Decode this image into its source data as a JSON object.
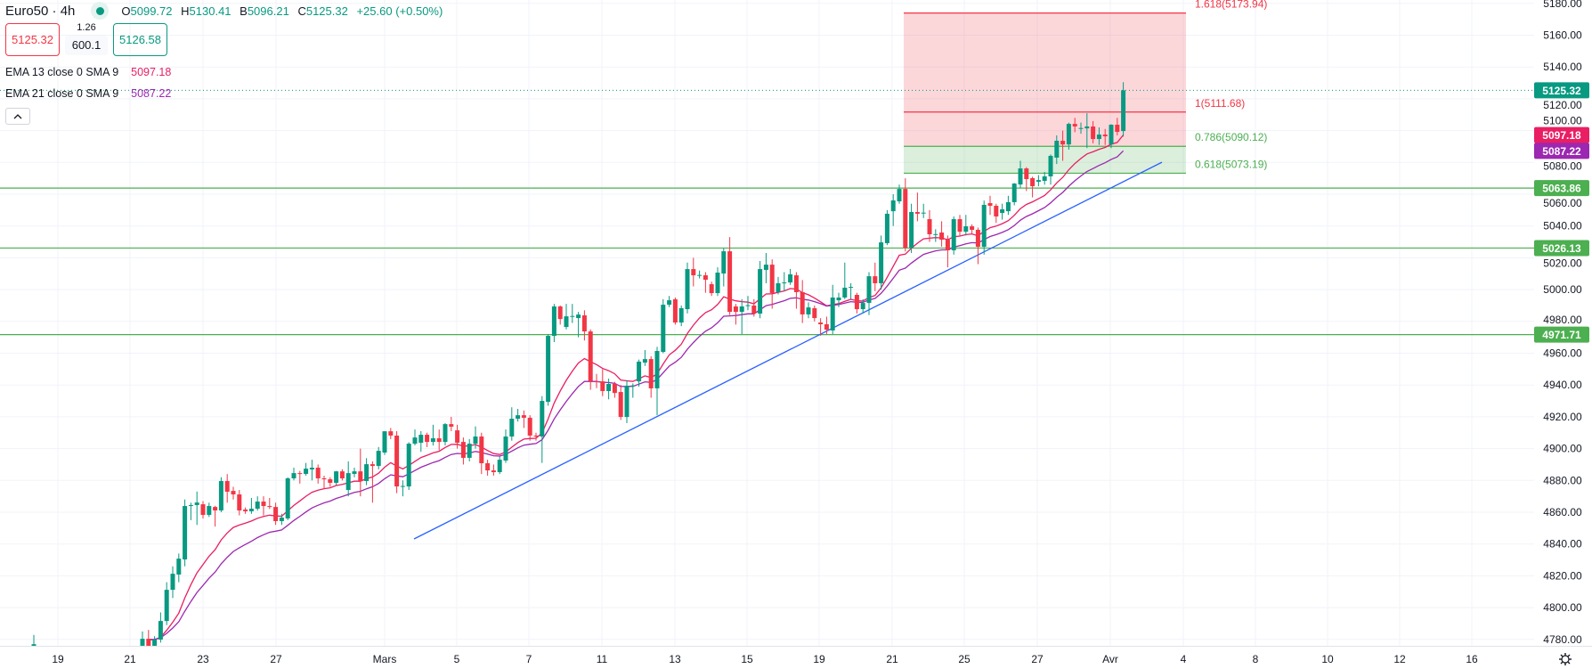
{
  "header": {
    "symbol": "Euro50 · 4h",
    "ohlc": [
      {
        "key": "O",
        "value": "5099.72"
      },
      {
        "key": "H",
        "value": "5130.41"
      },
      {
        "key": "B",
        "value": "5096.21"
      },
      {
        "key": "C",
        "value": "5125.32"
      }
    ],
    "change": "+25.60 (+0.50%)",
    "status_dot_color": "#089981"
  },
  "trade": {
    "sell_price": "5125.32",
    "spread": "1.26",
    "quantity": "600.1",
    "buy_price": "5126.58"
  },
  "indicators": [
    {
      "name": "EMA 13 close 0 SMA 9",
      "value": "5097.18",
      "color": "#e91e63",
      "length": 13
    },
    {
      "name": "EMA 21 close 0 SMA 9",
      "value": "5087.22",
      "color": "#9c27b0",
      "length": 21
    }
  ],
  "colors": {
    "up": "#089981",
    "down": "#f23645",
    "grid": "#f0f3fa",
    "level": "#4caf50",
    "trendline": "#2962ff",
    "fib_red": "#f23645",
    "fib_green": "#4caf50"
  },
  "icons": {
    "collapse": "chevron-up-icon",
    "settings": "gear-icon"
  },
  "chart_data": {
    "type": "candlestick",
    "ylim": [
      4776,
      5182
    ],
    "y_ticks": [
      5180,
      5160,
      5140,
      5120,
      5100,
      5080,
      5060,
      5040,
      5020,
      5000,
      4980,
      4960,
      4940,
      4920,
      4900,
      4880,
      4860,
      4840,
      4820,
      4800,
      4780
    ],
    "x_ticks": [
      "19",
      "21",
      "23",
      "27",
      "Mars",
      "5",
      "7",
      "11",
      "13",
      "15",
      "19",
      "21",
      "25",
      "27",
      "Avr",
      "4",
      "8",
      "10",
      "12",
      "16"
    ],
    "grid": true,
    "isolated_candle": [
      4776.0,
      4782.8,
      4776.0,
      4777.0
    ],
    "candles": [
      [
        4776.0,
        4785,
        4774,
        4780.4
      ],
      [
        4780.4,
        4786,
        4774,
        4776.0
      ],
      [
        4776.0,
        4782,
        4775,
        4779.9
      ],
      [
        4779.9,
        4797,
        4778,
        4791.6
      ],
      [
        4791.6,
        4816,
        4789,
        4811.2
      ],
      [
        4811.2,
        4826,
        4806,
        4821.3
      ],
      [
        4820.8,
        4834,
        4816,
        4830.8
      ],
      [
        4830.3,
        4868,
        4826,
        4863.9
      ],
      [
        4863.9,
        4866,
        4855,
        4864.5
      ],
      [
        4864.5,
        4873,
        4852,
        4866.1
      ],
      [
        4865.0,
        4867,
        4856,
        4858.3
      ],
      [
        4858.3,
        4866,
        4857,
        4863.9
      ],
      [
        4863.3,
        4864,
        4851,
        4861.1
      ],
      [
        4861.1,
        4882,
        4860,
        4879.6
      ],
      [
        4879.6,
        4884,
        4866,
        4872.9
      ],
      [
        4873.4,
        4876,
        4868,
        4871.2
      ],
      [
        4871.2,
        4874,
        4858,
        4861.1
      ],
      [
        4861.7,
        4863,
        4859,
        4860.6
      ],
      [
        4860.6,
        4869,
        4859,
        4862.2
      ],
      [
        4862.2,
        4870,
        4861,
        4866.7
      ],
      [
        4866.7,
        4870,
        4858,
        4863.9
      ],
      [
        4863.9,
        4869,
        4862,
        4863.3
      ],
      [
        4863.3,
        4866,
        4852,
        4854.4
      ],
      [
        4854.4,
        4859,
        4852,
        4856.6
      ],
      [
        4856.1,
        4882,
        4855,
        4881.3
      ],
      [
        4881.3,
        4888,
        4880,
        4884.6
      ],
      [
        4884.6,
        4886,
        4878,
        4884.1
      ],
      [
        4884.1,
        4891,
        4883,
        4887.4
      ],
      [
        4886.9,
        4893,
        4880,
        4888.0
      ],
      [
        4888.0,
        4890,
        4878,
        4881.3
      ],
      [
        4881.3,
        4883,
        4875,
        4880.7
      ],
      [
        4880.7,
        4882,
        4876,
        4878.5
      ],
      [
        4878.5,
        4886,
        4877,
        4885.7
      ],
      [
        4885.7,
        4887,
        4880,
        4881.3
      ],
      [
        4874.0,
        4892,
        4870,
        4884.6
      ],
      [
        4884.1,
        4888,
        4882,
        4885.7
      ],
      [
        4885.7,
        4900,
        4870,
        4879.6
      ],
      [
        4879.6,
        4894,
        4877,
        4890.2
      ],
      [
        4890.2,
        4892,
        4866,
        4889.1
      ],
      [
        4889.1,
        4901,
        4887,
        4898.6
      ],
      [
        4897.5,
        4911,
        4896,
        4910.9
      ],
      [
        4910.9,
        4913,
        4906,
        4908.2
      ],
      [
        4908.2,
        4911,
        4872,
        4876.2
      ],
      [
        4876.2,
        4880,
        4870,
        4876.5
      ],
      [
        4876.2,
        4904,
        4874,
        4903.1
      ],
      [
        4903.1,
        4912,
        4902,
        4907.0
      ],
      [
        4903.7,
        4911,
        4898,
        4908.7
      ],
      [
        4908.7,
        4910,
        4901,
        4904.2
      ],
      [
        4904.2,
        4915,
        4902,
        4906.5
      ],
      [
        4906.5,
        4912,
        4899,
        4904.2
      ],
      [
        4904.2,
        4916,
        4902,
        4915.4
      ],
      [
        4915.4,
        4920,
        4911,
        4913.8
      ],
      [
        4911.5,
        4915,
        4900,
        4903.7
      ],
      [
        4904.2,
        4907,
        4890,
        4894.2
      ],
      [
        4894.2,
        4906,
        4892,
        4903.1
      ],
      [
        4903.1,
        4914,
        4900,
        4907.6
      ],
      [
        4907.6,
        4910,
        4884,
        4890.8
      ],
      [
        4890.8,
        4893,
        4883,
        4886.3
      ],
      [
        4886.3,
        4890,
        4883,
        4885.2
      ],
      [
        4885.2,
        4895,
        4884,
        4893.0
      ],
      [
        4892.5,
        4912,
        4891,
        4907.6
      ],
      [
        4907.6,
        4926,
        4905,
        4918.8
      ],
      [
        4918.8,
        4925,
        4917,
        4921.0
      ],
      [
        4921.0,
        4924,
        4913,
        4919.4
      ],
      [
        4919.4,
        4921,
        4905,
        4908.2
      ],
      [
        4908.2,
        4910,
        4905,
        4907.6
      ],
      [
        4907.6,
        4933,
        4891,
        4930.0
      ],
      [
        4929.4,
        4972,
        4927,
        4970.9
      ],
      [
        4970.9,
        4991,
        4967,
        4989.4
      ],
      [
        4989.4,
        4990,
        4978,
        4981.5
      ],
      [
        4976.5,
        4991,
        4975,
        4983.2
      ],
      [
        4983.2,
        4991,
        4979,
        4983.4
      ],
      [
        4982.1,
        4986,
        4970,
        4984.3
      ],
      [
        4983.8,
        4987,
        4968,
        4973.7
      ],
      [
        4973.7,
        4975,
        4937,
        4942.3
      ],
      [
        4942.3,
        4947,
        4938,
        4942.0
      ],
      [
        4942.3,
        4950,
        4933,
        4936.2
      ],
      [
        4936.2,
        4944,
        4931,
        4940.7
      ],
      [
        4940.7,
        4942,
        4932,
        4935.0
      ],
      [
        4935.6,
        4940,
        4918,
        4919.9
      ],
      [
        4919.9,
        4943,
        4916,
        4939.5
      ],
      [
        4939.5,
        4941,
        4932,
        4939.7
      ],
      [
        4942.3,
        4956,
        4939,
        4954.7
      ],
      [
        4954.1,
        4962,
        4952,
        4956.3
      ],
      [
        4956.3,
        4958,
        4932,
        4937.9
      ],
      [
        4937.9,
        4964,
        4921,
        4961.4
      ],
      [
        4960.8,
        4994,
        4960,
        4990.5
      ],
      [
        4990.5,
        4996,
        4989,
        4993.3
      ],
      [
        4993.9,
        4995,
        4978,
        4979.3
      ],
      [
        4979.3,
        4990,
        4977,
        4988.3
      ],
      [
        4987.7,
        5017,
        4985,
        5012.9
      ],
      [
        5012.9,
        5020,
        5002,
        5009.0
      ],
      [
        5009.0,
        5012,
        5007,
        5009.2
      ],
      [
        5009.0,
        5011,
        4998,
        5006.2
      ],
      [
        5003.4,
        5005,
        4996,
        4997.8
      ],
      [
        4997.8,
        5014,
        4996,
        5010.7
      ],
      [
        5010.1,
        5026,
        5002,
        5024.1
      ],
      [
        5024.1,
        5033,
        4984,
        4986.0
      ],
      [
        4989.4,
        4991,
        4978,
        4986.0
      ],
      [
        4986.0,
        4994,
        4972,
        4989.4
      ],
      [
        4990.0,
        4996,
        4987,
        4990.2
      ],
      [
        4990.0,
        4994,
        4983,
        4984.9
      ],
      [
        4984.9,
        5018,
        4982,
        5012.9
      ],
      [
        5012.4,
        5023,
        5004,
        5015.7
      ],
      [
        5015.7,
        5019,
        4988,
        4997.8
      ],
      [
        4998.4,
        5008,
        4997,
        5004.0
      ],
      [
        5004.0,
        5011,
        4999,
        5004.5
      ],
      [
        5004.5,
        5013,
        5003,
        5009.6
      ],
      [
        5009.0,
        5011,
        4988,
        4998.4
      ],
      [
        4998.4,
        5006,
        4979,
        4984.4
      ],
      [
        4984.4,
        4992,
        4982,
        4988.8
      ],
      [
        4988.3,
        4990,
        4980,
        4982.1
      ],
      [
        4979.3,
        4982,
        4971,
        4978.2
      ],
      [
        4978.2,
        4983,
        4972,
        4974.8
      ],
      [
        4974.3,
        5003,
        4972,
        4995.0
      ],
      [
        4993.3,
        4998,
        4989,
        4995.0
      ],
      [
        4995.0,
        5017,
        4994,
        5001.2
      ],
      [
        5001.2,
        5004,
        4994,
        5001.7
      ],
      [
        4996.7,
        4998,
        4985,
        4987.7
      ],
      [
        4987.7,
        4994,
        4985,
        4991.6
      ],
      [
        4991.6,
        5011,
        4984,
        5008.4
      ],
      [
        5008.4,
        5017,
        4999,
        5004.0
      ],
      [
        5004.0,
        5034,
        5000,
        5029.7
      ],
      [
        5029.2,
        5050,
        5028,
        5047.7
      ],
      [
        5049.3,
        5060,
        5040,
        5056.1
      ],
      [
        5055.5,
        5066,
        5054,
        5063.3
      ],
      [
        5063.3,
        5070,
        5024,
        5026.4
      ],
      [
        5026.4,
        5054,
        5023,
        5048.8
      ],
      [
        5048.8,
        5061,
        5043,
        5047.7
      ],
      [
        5048.2,
        5054,
        5045,
        5048.4
      ],
      [
        5044.3,
        5050,
        5030,
        5034.8
      ],
      [
        5034.8,
        5038,
        5030,
        5034.9
      ],
      [
        5035.9,
        5043,
        5027,
        5031.4
      ],
      [
        5031.4,
        5034,
        5014,
        5024.7
      ],
      [
        5024.7,
        5046,
        5022,
        5044.3
      ],
      [
        5044.3,
        5047,
        5034,
        5036.4
      ],
      [
        5036.4,
        5047,
        5034,
        5039.8
      ],
      [
        5039.8,
        5041,
        5035,
        5037.6
      ],
      [
        5037.6,
        5039,
        5016,
        5026.9
      ],
      [
        5026.9,
        5056,
        5022,
        5053.3
      ],
      [
        5054.4,
        5059,
        5047,
        5052.7
      ],
      [
        5052.7,
        5054,
        5042,
        5046.0
      ],
      [
        5048.2,
        5054,
        5044,
        5050.5
      ],
      [
        5049.3,
        5059,
        5047,
        5055.0
      ],
      [
        5055.0,
        5067,
        5053,
        5066.7
      ],
      [
        5066.1,
        5081,
        5064,
        5076.2
      ],
      [
        5076.2,
        5077,
        5062,
        5069.5
      ],
      [
        5070.1,
        5071,
        5058,
        5065.0
      ],
      [
        5067.8,
        5072,
        5065,
        5068.9
      ],
      [
        5068.4,
        5074,
        5066,
        5071.2
      ],
      [
        5071.2,
        5085,
        5066,
        5084.1
      ],
      [
        5083.0,
        5097,
        5079,
        5093.6
      ],
      [
        5093.6,
        5100,
        5081,
        5091.3
      ],
      [
        5091.3,
        5105,
        5088,
        5104.2
      ],
      [
        5104.2,
        5108,
        5099,
        5102.6
      ],
      [
        5101.4,
        5105,
        5098,
        5101.6
      ],
      [
        5101.4,
        5111,
        5089,
        5102.6
      ],
      [
        5102.6,
        5106,
        5092,
        5094.7
      ],
      [
        5094.7,
        5102,
        5091,
        5097.5
      ],
      [
        5097.5,
        5101,
        5091,
        5096.4
      ],
      [
        5091.3,
        5104,
        5089,
        5103.7
      ],
      [
        5103.7,
        5108,
        5097,
        5099.2
      ],
      [
        5099.72,
        5130.41,
        5096.21,
        5125.32
      ]
    ],
    "horizontal_levels": [
      {
        "price": 5063.86,
        "label": "5063.86"
      },
      {
        "price": 5026.13,
        "label": "5026.13"
      },
      {
        "price": 4971.71,
        "label": "4971.71"
      }
    ],
    "last_price": {
      "price": 5125.32,
      "label": "5125.32"
    },
    "trendline": {
      "start_price": 4843.2,
      "end_price": 5080.1
    },
    "fibonacci": [
      {
        "ratio": "1.618",
        "price": 5173.94,
        "label": "1.618(5173.94)",
        "zone": "red"
      },
      {
        "ratio": "1",
        "price": 5111.68,
        "label": "1(5111.68)",
        "zone": "red"
      },
      {
        "ratio": "0.786",
        "price": 5090.12,
        "label": "0.786(5090.12)",
        "zone": "green"
      },
      {
        "ratio": "0.618",
        "price": 5073.19,
        "label": "0.618(5073.19)",
        "zone": "green"
      }
    ]
  }
}
